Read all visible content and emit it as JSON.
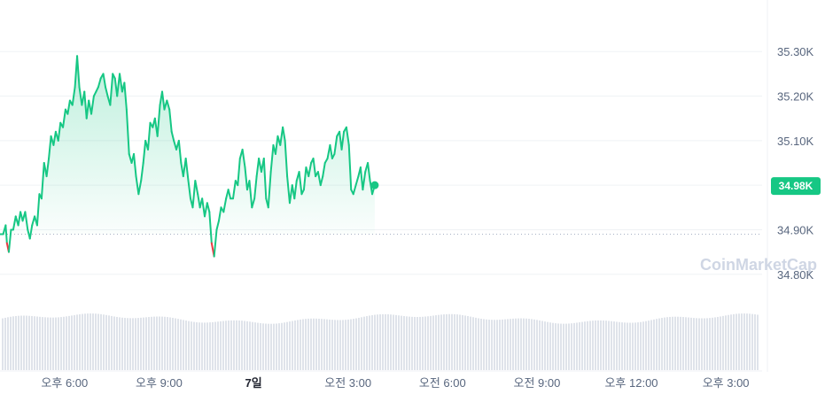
{
  "chart_data": {
    "type": "line",
    "watermark": "CoinMarketCap",
    "current_price_label": "34.98K",
    "baseline": 34.89,
    "ylim": [
      34.72,
      35.38
    ],
    "y_ticks": [
      {
        "value": 35.3,
        "label": "35.30K"
      },
      {
        "value": 35.2,
        "label": "35.20K"
      },
      {
        "value": 35.1,
        "label": "35.10K"
      },
      {
        "value": 35.0,
        "label": "35.00K"
      },
      {
        "value": 34.9,
        "label": "34.90K"
      },
      {
        "value": 34.8,
        "label": "34.80K"
      }
    ],
    "x_ticks": [
      {
        "t": 3.25,
        "label": "오후 6:00",
        "bold": false
      },
      {
        "t": 6.25,
        "label": "오후 9:00",
        "bold": false
      },
      {
        "t": 9.25,
        "label": "7일",
        "bold": true
      },
      {
        "t": 12.25,
        "label": "오전 3:00",
        "bold": false
      },
      {
        "t": 15.25,
        "label": "오전 6:00",
        "bold": false
      },
      {
        "t": 18.25,
        "label": "오전 9:00",
        "bold": false
      },
      {
        "t": 21.25,
        "label": "오후 12:00",
        "bold": false
      },
      {
        "t": 24.25,
        "label": "오후 3:00",
        "bold": false
      }
    ],
    "xlim": [
      1.2,
      25.4
    ],
    "colors": {
      "up": "#16c784",
      "down": "#ea3943",
      "grid": "#eff2f5",
      "volume": "#dfe3ea",
      "axis_text": "#58667e"
    },
    "series": [
      {
        "values": [
          [
            1.2,
            34.89
          ],
          [
            1.3,
            34.89
          ],
          [
            1.38,
            34.91
          ],
          [
            1.42,
            34.87
          ],
          [
            1.48,
            34.85
          ],
          [
            1.55,
            34.9
          ],
          [
            1.62,
            34.9
          ],
          [
            1.7,
            34.93
          ],
          [
            1.78,
            34.91
          ],
          [
            1.85,
            34.94
          ],
          [
            1.92,
            34.92
          ],
          [
            2.0,
            34.94
          ],
          [
            2.08,
            34.9
          ],
          [
            2.15,
            34.88
          ],
          [
            2.22,
            34.91
          ],
          [
            2.3,
            34.93
          ],
          [
            2.38,
            34.91
          ],
          [
            2.45,
            34.98
          ],
          [
            2.52,
            34.97
          ],
          [
            2.6,
            35.05
          ],
          [
            2.68,
            35.02
          ],
          [
            2.75,
            35.06
          ],
          [
            2.82,
            35.11
          ],
          [
            2.9,
            35.09
          ],
          [
            2.97,
            35.12
          ],
          [
            3.05,
            35.1
          ],
          [
            3.12,
            35.14
          ],
          [
            3.2,
            35.13
          ],
          [
            3.28,
            35.17
          ],
          [
            3.35,
            35.16
          ],
          [
            3.42,
            35.19
          ],
          [
            3.5,
            35.18
          ],
          [
            3.58,
            35.22
          ],
          [
            3.65,
            35.29
          ],
          [
            3.72,
            35.22
          ],
          [
            3.8,
            35.18
          ],
          [
            3.88,
            35.21
          ],
          [
            3.95,
            35.15
          ],
          [
            4.02,
            35.19
          ],
          [
            4.1,
            35.16
          ],
          [
            4.18,
            35.2
          ],
          [
            4.25,
            35.21
          ],
          [
            4.32,
            35.22
          ],
          [
            4.4,
            35.24
          ],
          [
            4.48,
            35.25
          ],
          [
            4.55,
            35.22
          ],
          [
            4.62,
            35.2
          ],
          [
            4.7,
            35.18
          ],
          [
            4.78,
            35.25
          ],
          [
            4.85,
            35.24
          ],
          [
            4.92,
            35.2
          ],
          [
            5.0,
            35.25
          ],
          [
            5.08,
            35.21
          ],
          [
            5.15,
            35.23
          ],
          [
            5.22,
            35.17
          ],
          [
            5.3,
            35.07
          ],
          [
            5.38,
            35.05
          ],
          [
            5.45,
            35.07
          ],
          [
            5.52,
            35.02
          ],
          [
            5.6,
            34.98
          ],
          [
            5.68,
            35.01
          ],
          [
            5.75,
            35.05
          ],
          [
            5.82,
            35.1
          ],
          [
            5.9,
            35.08
          ],
          [
            5.97,
            35.14
          ],
          [
            6.05,
            35.13
          ],
          [
            6.12,
            35.15
          ],
          [
            6.2,
            35.11
          ],
          [
            6.28,
            35.18
          ],
          [
            6.35,
            35.21
          ],
          [
            6.42,
            35.17
          ],
          [
            6.5,
            35.19
          ],
          [
            6.58,
            35.17
          ],
          [
            6.65,
            35.12
          ],
          [
            6.72,
            35.1
          ],
          [
            6.8,
            35.08
          ],
          [
            6.88,
            35.1
          ],
          [
            6.95,
            35.05
          ],
          [
            7.02,
            35.02
          ],
          [
            7.1,
            35.06
          ],
          [
            7.18,
            35.01
          ],
          [
            7.25,
            34.97
          ],
          [
            7.32,
            34.95
          ],
          [
            7.4,
            35.01
          ],
          [
            7.48,
            34.98
          ],
          [
            7.55,
            34.95
          ],
          [
            7.62,
            34.97
          ],
          [
            7.7,
            34.93
          ],
          [
            7.78,
            34.96
          ],
          [
            7.85,
            34.94
          ],
          [
            7.92,
            34.87
          ],
          [
            8.0,
            34.84
          ],
          [
            8.08,
            34.9
          ],
          [
            8.15,
            34.92
          ],
          [
            8.22,
            34.95
          ],
          [
            8.3,
            34.94
          ],
          [
            8.38,
            34.97
          ],
          [
            8.45,
            34.99
          ],
          [
            8.52,
            34.97
          ],
          [
            8.6,
            34.97
          ],
          [
            8.68,
            35.01
          ],
          [
            8.75,
            35.0
          ],
          [
            8.82,
            35.06
          ],
          [
            8.9,
            35.08
          ],
          [
            8.98,
            35.04
          ],
          [
            9.05,
            34.99
          ],
          [
            9.12,
            35.01
          ],
          [
            9.2,
            34.95
          ],
          [
            9.28,
            34.97
          ],
          [
            9.35,
            35.02
          ],
          [
            9.42,
            35.06
          ],
          [
            9.5,
            35.03
          ],
          [
            9.58,
            35.06
          ],
          [
            9.65,
            34.97
          ],
          [
            9.72,
            34.95
          ],
          [
            9.8,
            35.03
          ],
          [
            9.88,
            35.09
          ],
          [
            9.95,
            35.07
          ],
          [
            10.02,
            35.11
          ],
          [
            10.1,
            35.09
          ],
          [
            10.18,
            35.13
          ],
          [
            10.25,
            35.1
          ],
          [
            10.32,
            35.02
          ],
          [
            10.4,
            34.96
          ],
          [
            10.48,
            35.0
          ],
          [
            10.55,
            34.97
          ],
          [
            10.62,
            35.01
          ],
          [
            10.7,
            35.03
          ],
          [
            10.78,
            34.98
          ],
          [
            10.85,
            34.99
          ],
          [
            10.92,
            35.04
          ],
          [
            11.0,
            35.02
          ],
          [
            11.08,
            35.05
          ],
          [
            11.15,
            35.06
          ],
          [
            11.22,
            35.02
          ],
          [
            11.3,
            35.03
          ],
          [
            11.38,
            35.0
          ],
          [
            11.45,
            35.02
          ],
          [
            11.52,
            35.05
          ],
          [
            11.6,
            35.06
          ],
          [
            11.68,
            35.09
          ],
          [
            11.75,
            35.06
          ],
          [
            11.82,
            35.07
          ],
          [
            11.9,
            35.11
          ],
          [
            11.98,
            35.12
          ],
          [
            12.05,
            35.08
          ],
          [
            12.12,
            35.12
          ],
          [
            12.2,
            35.13
          ],
          [
            12.28,
            35.09
          ],
          [
            12.35,
            34.99
          ],
          [
            12.42,
            34.98
          ],
          [
            12.5,
            35.0
          ],
          [
            12.58,
            35.02
          ],
          [
            12.65,
            35.04
          ],
          [
            12.72,
            34.99
          ],
          [
            12.8,
            35.03
          ],
          [
            12.88,
            35.05
          ],
          [
            12.95,
            35.01
          ],
          [
            13.02,
            34.98
          ],
          [
            13.1,
            35.0
          ]
        ]
      }
    ]
  }
}
